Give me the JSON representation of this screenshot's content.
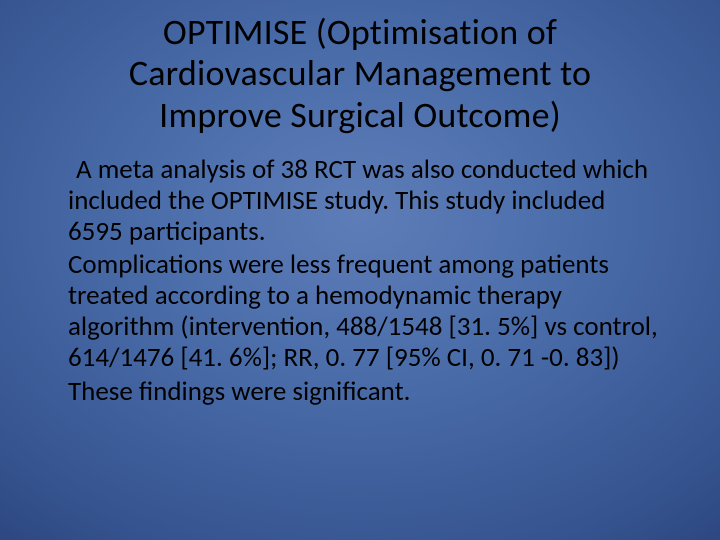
{
  "slide": {
    "title": "OPTIMISE (Optimisation of Cardiovascular Management to Improve Surgical Outcome)",
    "para1": " A meta analysis of 38 RCT was also conducted which included the OPTIMISE study.  This study included 6595 participants.",
    "para2": "Complications were less frequent among patients treated according to a hemodynamic therapy algorithm (intervention, 488/1548 [31. 5%] vs control, 614/1476 [41. 6%]; RR, 0. 77 [95% CI, 0. 71 -0. 83])",
    "para3": "These findings were significant.",
    "colors": {
      "background_center": "#5e7db8",
      "background_mid": "#35538f",
      "background_edge": "#162548",
      "text": "#000000"
    },
    "typography": {
      "title_fontsize": 36,
      "body_fontsize": 27,
      "font_family": "Calibri"
    }
  }
}
